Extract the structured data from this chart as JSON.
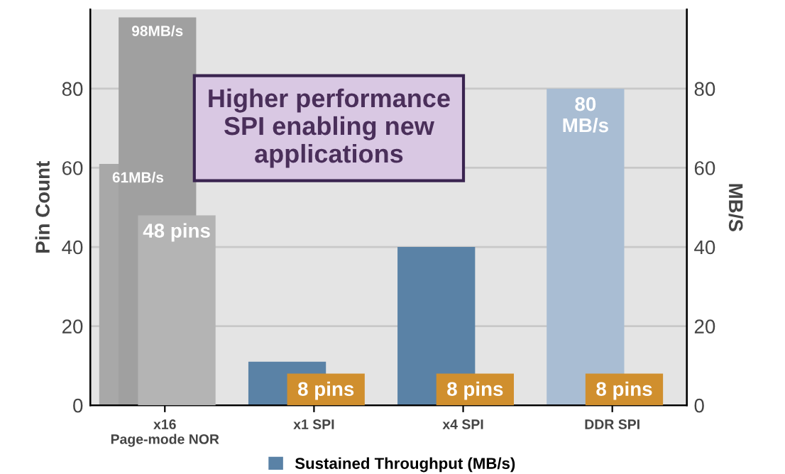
{
  "chart_data": {
    "type": "bar",
    "categories": [
      "x16\nPage-mode NOR",
      "x1 SPI",
      "x4 SPI",
      "DDR SPI"
    ],
    "series": [
      {
        "name": "Sustained Throughput (MB/s)",
        "color": "#5a82a6",
        "colors": [
          "#a8a8a8",
          "#5a82a6",
          "#5a82a6",
          "#a9bdd3"
        ],
        "axis": "y2",
        "values": [
          61,
          11,
          40,
          80
        ],
        "value_labels": [
          "61MB/s",
          null,
          null,
          "80\nMB/s"
        ]
      },
      {
        "color": "#a0a0a0",
        "axis": "y2",
        "values": [
          98,
          null,
          null,
          null
        ],
        "value_labels": [
          "98MB/s",
          null,
          null,
          null
        ]
      },
      {
        "color": "#d08f2e",
        "colors": [
          "#b4b4b4",
          null,
          null,
          null
        ],
        "values": [
          48,
          8,
          8,
          8
        ],
        "value_labels": [
          "48 pins",
          "8 pins",
          "8 pins",
          "8 pins"
        ]
      }
    ],
    "ylabel": "Pin Count",
    "y2label": "MB/S",
    "ylim": [
      0,
      100
    ],
    "yticks": [
      0,
      20,
      40,
      60,
      80
    ],
    "y2lim": [
      0,
      100
    ],
    "y2ticks": [
      0,
      20,
      40,
      60,
      80
    ],
    "grid": "y",
    "legend": "bottom",
    "annotations": [
      "Higher performance\nSPI enabling new\napplications"
    ]
  }
}
